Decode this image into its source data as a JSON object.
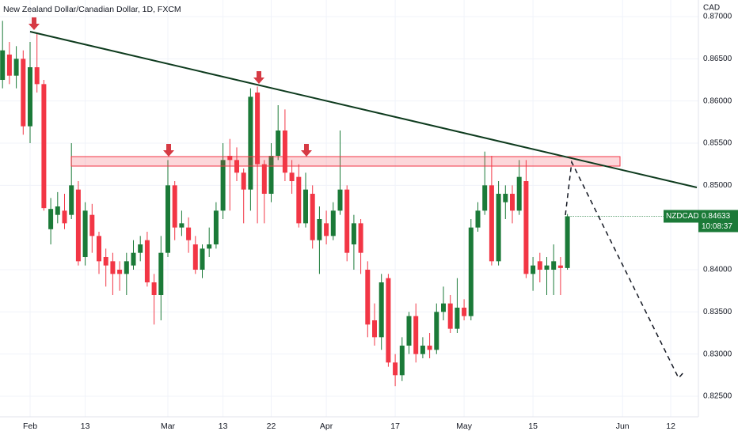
{
  "chart_data": {
    "type": "candlestick",
    "title": "New Zealand Dollar/Canadian Dollar, 1D, FXCM",
    "currency": "CAD",
    "up_color": "#1b7a38",
    "down_color": "#f23645",
    "open": [
      0.8625,
      0.8655,
      0.863,
      0.865,
      0.857,
      0.864,
      0.862,
      0.8448,
      0.8465,
      0.847,
      0.8465,
      0.8495,
      0.8415,
      0.8465,
      0.844,
      0.8415,
      0.841,
      0.84,
      0.8395,
      0.8405,
      0.842,
      0.8435,
      0.8385,
      0.837,
      0.842,
      0.85,
      0.845,
      0.845,
      0.843,
      0.84,
      0.8425,
      0.843,
      0.847,
      0.8535,
      0.853,
      0.8515,
      0.8495,
      0.861,
      0.8525,
      0.849,
      0.8535,
      0.8565,
      0.8515,
      0.851,
      0.8455,
      0.849,
      0.8435,
      0.8455,
      0.844,
      0.847,
      0.8495,
      0.843,
      0.8455,
      0.84,
      0.834,
      0.832,
      0.839,
      0.829,
      0.8275,
      0.831,
      0.8345,
      0.83,
      0.831,
      0.8305,
      0.835,
      0.836,
      0.833,
      0.8355,
      0.8345,
      0.845,
      0.847,
      0.85,
      0.841,
      0.848,
      0.849,
      0.847,
      0.8505,
      0.8395,
      0.841,
      0.84,
      0.84,
      0.8405,
      0.8402
    ],
    "high": [
      0.8695,
      0.867,
      0.8665,
      0.866,
      0.867,
      0.868,
      0.8625,
      0.8485,
      0.8492,
      0.849,
      0.855,
      0.8505,
      0.848,
      0.8478,
      0.8445,
      0.8425,
      0.842,
      0.841,
      0.842,
      0.8435,
      0.844,
      0.8445,
      0.8395,
      0.844,
      0.853,
      0.8505,
      0.847,
      0.8462,
      0.844,
      0.843,
      0.845,
      0.848,
      0.855,
      0.8555,
      0.8545,
      0.852,
      0.8615,
      0.8617,
      0.853,
      0.855,
      0.8595,
      0.859,
      0.853,
      0.8525,
      0.8515,
      0.85,
      0.8475,
      0.847,
      0.848,
      0.8565,
      0.85,
      0.8465,
      0.846,
      0.841,
      0.836,
      0.8395,
      0.8395,
      0.83,
      0.832,
      0.835,
      0.836,
      0.832,
      0.8325,
      0.836,
      0.838,
      0.837,
      0.839,
      0.8365,
      0.846,
      0.848,
      0.854,
      0.8535,
      0.8505,
      0.85,
      0.85,
      0.853,
      0.853,
      0.8415,
      0.842,
      0.8415,
      0.843,
      0.8415,
      0.8466
    ],
    "low": [
      0.8615,
      0.862,
      0.8615,
      0.856,
      0.855,
      0.861,
      0.847,
      0.843,
      0.8455,
      0.8448,
      0.846,
      0.8405,
      0.8405,
      0.842,
      0.8395,
      0.838,
      0.837,
      0.8375,
      0.837,
      0.84,
      0.841,
      0.838,
      0.8335,
      0.834,
      0.8415,
      0.8435,
      0.844,
      0.842,
      0.8395,
      0.839,
      0.8415,
      0.8425,
      0.846,
      0.847,
      0.8505,
      0.8455,
      0.847,
      0.8455,
      0.8455,
      0.848,
      0.853,
      0.8505,
      0.849,
      0.845,
      0.845,
      0.8425,
      0.8395,
      0.843,
      0.8435,
      0.8465,
      0.841,
      0.84,
      0.8395,
      0.832,
      0.831,
      0.8305,
      0.8285,
      0.8262,
      0.8268,
      0.83,
      0.829,
      0.8295,
      0.8295,
      0.83,
      0.834,
      0.8325,
      0.8325,
      0.834,
      0.834,
      0.8445,
      0.8465,
      0.8405,
      0.8405,
      0.846,
      0.8455,
      0.8465,
      0.839,
      0.8375,
      0.8385,
      0.837,
      0.837,
      0.837,
      0.84
    ],
    "close": [
      0.866,
      0.863,
      0.865,
      0.857,
      0.864,
      0.862,
      0.8473,
      0.8472,
      0.8475,
      0.8455,
      0.85,
      0.841,
      0.847,
      0.844,
      0.841,
      0.8405,
      0.8395,
      0.8395,
      0.841,
      0.842,
      0.843,
      0.8385,
      0.837,
      0.842,
      0.85,
      0.845,
      0.8455,
      0.8435,
      0.84,
      0.8425,
      0.843,
      0.847,
      0.853,
      0.853,
      0.8515,
      0.8495,
      0.8605,
      0.8525,
      0.849,
      0.8535,
      0.8565,
      0.8515,
      0.8505,
      0.8455,
      0.8495,
      0.8435,
      0.846,
      0.844,
      0.847,
      0.8495,
      0.842,
      0.8455,
      0.842,
      0.8335,
      0.832,
      0.8385,
      0.829,
      0.8275,
      0.831,
      0.8345,
      0.83,
      0.831,
      0.8305,
      0.835,
      0.836,
      0.833,
      0.8355,
      0.8345,
      0.845,
      0.847,
      0.85,
      0.841,
      0.849,
      0.849,
      0.847,
      0.851,
      0.8395,
      0.8405,
      0.84,
      0.8405,
      0.841,
      0.8402,
      0.84633
    ],
    "ylim": [
      0.82275,
      0.87197
    ],
    "yticks": [
      {
        "value": 0.87,
        "label": "0.87000"
      },
      {
        "value": 0.865,
        "label": "0.86500"
      },
      {
        "value": 0.86,
        "label": "0.86000"
      },
      {
        "value": 0.855,
        "label": "0.85500"
      },
      {
        "value": 0.85,
        "label": "0.85000"
      },
      {
        "value": 0.84,
        "label": "0.84000"
      },
      {
        "value": 0.835,
        "label": "0.83500"
      },
      {
        "value": 0.83,
        "label": "0.83000"
      },
      {
        "value": 0.825,
        "label": "0.82500"
      }
    ],
    "xticks": [
      {
        "value": 4,
        "label": "Feb"
      },
      {
        "value": 12,
        "label": "13"
      },
      {
        "value": 24,
        "label": "Mar"
      },
      {
        "value": 32,
        "label": "13"
      },
      {
        "value": 39,
        "label": "22"
      },
      {
        "value": 47,
        "label": "Apr"
      },
      {
        "value": 57,
        "label": "17"
      },
      {
        "value": 67,
        "label": "May"
      },
      {
        "value": 77,
        "label": "15"
      },
      {
        "value": 90,
        "label": "Jun"
      },
      {
        "value": 97,
        "label": "12"
      }
    ],
    "last_price": {
      "symbol": "NZDCAD",
      "price": 0.84633,
      "timer": "10:08:37"
    }
  }
}
